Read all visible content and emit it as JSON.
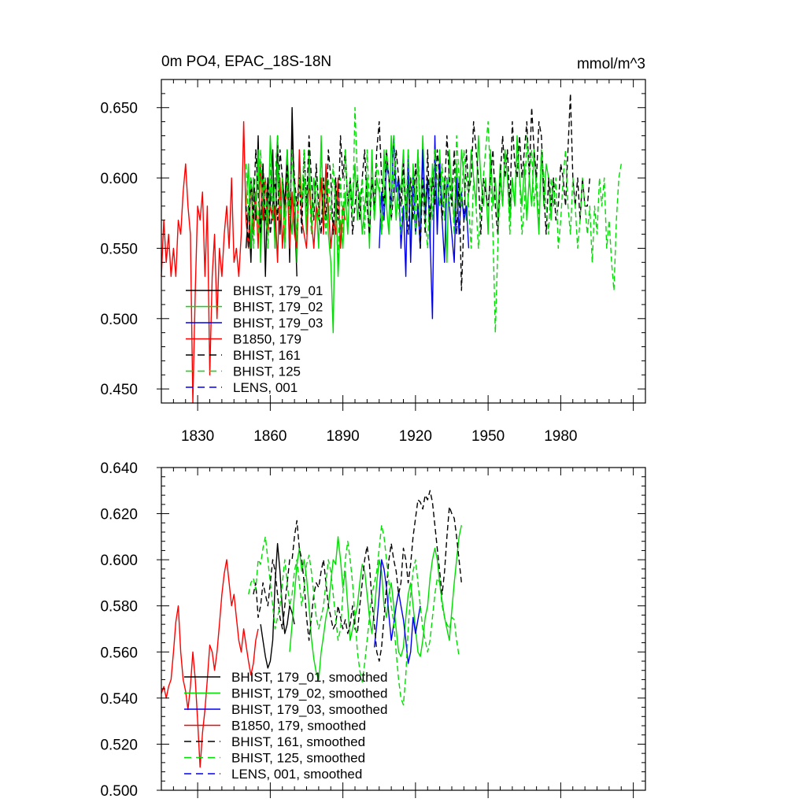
{
  "chart_data": [
    {
      "type": "line",
      "title": "0m PO4, EPAC_18S-18N",
      "units": "mmol/m^3",
      "xlim": [
        1815,
        2015
      ],
      "ylim": [
        0.44,
        0.67
      ],
      "x_ticks": [
        1830,
        1860,
        1890,
        1920,
        1950,
        1980
      ],
      "x_tick_labels": [
        "1830",
        "1860",
        "1890",
        "1920",
        "1950",
        "1980"
      ],
      "y_ticks": [
        0.45,
        0.5,
        0.55,
        0.6,
        0.65
      ],
      "y_tick_labels": [
        "0.450",
        "0.500",
        "0.550",
        "0.600",
        "0.650"
      ],
      "legend_position": "lower-left",
      "series": [
        {
          "name": "BHIST, 179_01",
          "color": "#000000",
          "dashed": false,
          "x0": 1850,
          "values": [
            0.55,
            0.58,
            0.54,
            0.6,
            0.57,
            0.63,
            0.55,
            0.61,
            0.53,
            0.6,
            0.58,
            0.62,
            0.55,
            0.63,
            0.56,
            0.6,
            0.58,
            0.62,
            0.54,
            0.65,
            0.58,
            0.53
          ]
        },
        {
          "name": "BHIST, 179_02",
          "color": "#00dd00",
          "dashed": false,
          "x0": 1850,
          "values": [
            0.58,
            0.61,
            0.55,
            0.6,
            0.58,
            0.62,
            0.54,
            0.6,
            0.57,
            0.56,
            0.63,
            0.59,
            0.55,
            0.61,
            0.57,
            0.6,
            0.55,
            0.62,
            0.58,
            0.56,
            0.6,
            0.54,
            0.62,
            0.58,
            0.6,
            0.56,
            0.62,
            0.57,
            0.6,
            0.58,
            0.55,
            0.63,
            0.57,
            0.6,
            0.56,
            0.54,
            0.49,
            0.6,
            0.53,
            0.57,
            0.55,
            0.59,
            0.56,
            0.6,
            0.58,
            0.61,
            0.57,
            0.59,
            0.56,
            0.58,
            0.6,
            0.55,
            0.62,
            0.57,
            0.6,
            0.59,
            0.56,
            0.62,
            0.58,
            0.56,
            0.63,
            0.6,
            0.57,
            0.6,
            0.59,
            0.62,
            0.57,
            0.6,
            0.55,
            0.61,
            0.58,
            0.62,
            0.56,
            0.63,
            0.58,
            0.6,
            0.55,
            0.61,
            0.59,
            0.57,
            0.62,
            0.58,
            0.6,
            0.54,
            0.62,
            0.59,
            0.57,
            0.61,
            0.58,
            0.62,
            0.6,
            0.57,
            0.59,
            0.62,
            0.6,
            0.58,
            0.63,
            0.6,
            0.58,
            0.6,
            0.56,
            0.62,
            0.58,
            0.6,
            0.57,
            0.61,
            0.58,
            0.62,
            0.6,
            0.57,
            0.6,
            0.58,
            0.63,
            0.6,
            0.58,
            0.61,
            0.57,
            0.6,
            0.58,
            0.62,
            0.59,
            0.56,
            0.62,
            0.58,
            0.61,
            0.6,
            0.57,
            0.6
          ]
        },
        {
          "name": "BHIST, 179_03",
          "color": "#0000ee",
          "dashed": false,
          "x0": 1905,
          "values": [
            0.55,
            0.59,
            0.57,
            0.61,
            0.6,
            0.58,
            0.63,
            0.59,
            0.6,
            0.55,
            0.58,
            0.53,
            0.62,
            0.54,
            0.6,
            0.56,
            0.58,
            0.55,
            0.62,
            0.57,
            0.6,
            0.56,
            0.5,
            0.63,
            0.56,
            0.61,
            0.57,
            0.54,
            0.6,
            0.58,
            0.56,
            0.54,
            0.6,
            0.56,
            0.59,
            0.57,
            0.58,
            0.55
          ]
        },
        {
          "name": "B1850, 179",
          "color": "#ff0000",
          "dashed": false,
          "x0": 1815,
          "values": [
            0.53,
            0.57,
            0.54,
            0.56,
            0.53,
            0.55,
            0.53,
            0.57,
            0.56,
            0.59,
            0.61,
            0.58,
            0.56,
            0.44,
            0.52,
            0.58,
            0.57,
            0.59,
            0.53,
            0.58,
            0.46,
            0.53,
            0.56,
            0.5,
            0.55,
            0.53,
            0.56,
            0.58,
            0.55,
            0.6,
            0.54,
            0.55,
            0.53,
            0.56,
            0.64,
            0.57,
            0.55,
            0.6,
            0.56,
            0.59,
            0.55,
            0.61,
            0.57,
            0.6,
            0.56,
            0.58,
            0.57,
            0.58,
            0.54,
            0.6,
            0.55,
            0.58,
            0.6,
            0.55,
            0.59,
            0.56,
            0.55,
            0.62,
            0.57,
            0.56,
            0.55,
            0.6,
            0.57,
            0.55,
            0.58,
            0.57,
            0.6,
            0.56,
            0.61,
            0.58,
            0.55,
            0.57,
            0.56,
            0.6,
            0.55,
            0.58,
            0.57
          ]
        },
        {
          "name": "BHIST, 161",
          "color": "#000000",
          "dashed": true,
          "x0": 1850,
          "values": [
            0.58,
            0.55,
            0.6,
            0.57,
            0.62,
            0.59,
            0.56,
            0.61,
            0.57,
            0.6,
            0.56,
            0.58,
            0.6,
            0.57,
            0.62,
            0.6,
            0.58,
            0.61,
            0.57,
            0.63,
            0.6,
            0.58,
            0.6,
            0.56,
            0.62,
            0.58,
            0.63,
            0.6,
            0.57,
            0.61,
            0.58,
            0.56,
            0.6,
            0.57,
            0.62,
            0.6,
            0.56,
            0.6,
            0.57,
            0.63,
            0.6,
            0.62,
            0.58,
            0.6,
            0.56,
            0.58,
            0.6,
            0.57,
            0.6,
            0.62,
            0.58,
            0.56,
            0.6,
            0.58,
            0.62,
            0.64,
            0.6,
            0.58,
            0.62,
            0.6,
            0.57,
            0.59,
            0.62,
            0.6,
            0.58,
            0.61,
            0.58,
            0.56,
            0.6,
            0.57,
            0.61,
            0.58,
            0.55,
            0.6,
            0.56,
            0.62,
            0.57,
            0.6,
            0.58,
            0.62,
            0.6,
            0.57,
            0.59,
            0.63,
            0.6,
            0.58,
            0.62,
            0.56,
            0.6,
            0.52,
            0.57,
            0.62,
            0.59,
            0.6,
            0.64,
            0.62,
            0.6,
            0.56,
            0.6,
            0.59,
            0.58,
            0.6,
            0.62,
            0.58,
            0.56,
            0.6,
            0.63,
            0.6,
            0.62,
            0.58,
            0.64,
            0.61,
            0.6,
            0.63,
            0.6,
            0.62,
            0.64,
            0.6,
            0.65,
            0.62,
            0.6,
            0.64,
            0.63,
            0.59,
            0.56,
            0.6,
            0.58,
            0.6,
            0.57,
            0.58,
            0.61,
            0.6,
            0.58,
            0.62,
            0.66,
            0.6,
            0.58,
            0.6,
            0.57,
            0.6,
            0.58,
            0.58,
            0.6
          ]
        },
        {
          "name": "BHIST, 125",
          "color": "#00dd00",
          "dashed": true,
          "x0": 1850,
          "values": [
            0.61,
            0.57,
            0.6,
            0.55,
            0.59,
            0.56,
            0.62,
            0.58,
            0.6,
            0.55,
            0.61,
            0.57,
            0.6,
            0.63,
            0.57,
            0.6,
            0.55,
            0.6,
            0.57,
            0.62,
            0.58,
            0.56,
            0.6,
            0.58,
            0.62,
            0.57,
            0.6,
            0.56,
            0.58,
            0.6,
            0.57,
            0.62,
            0.58,
            0.56,
            0.6,
            0.57,
            0.61,
            0.58,
            0.54,
            0.6,
            0.56,
            0.62,
            0.58,
            0.6,
            0.57,
            0.65,
            0.6,
            0.58,
            0.6,
            0.56,
            0.62,
            0.58,
            0.6,
            0.57,
            0.61,
            0.6,
            0.56,
            0.58,
            0.62,
            0.6,
            0.57,
            0.63,
            0.6,
            0.58,
            0.56,
            0.6,
            0.57,
            0.62,
            0.58,
            0.6,
            0.56,
            0.62,
            0.58,
            0.6,
            0.57,
            0.55,
            0.6,
            0.57,
            0.62,
            0.6,
            0.58,
            0.61,
            0.57,
            0.6,
            0.58,
            0.6,
            0.56,
            0.63,
            0.6,
            0.58,
            0.62,
            0.6,
            0.58,
            0.55,
            0.6,
            0.58,
            0.55,
            0.58,
            0.6,
            0.62,
            0.64,
            0.6,
            0.56,
            0.49,
            0.55,
            0.6,
            0.58,
            0.62,
            0.6,
            0.56,
            0.6,
            0.58,
            0.62,
            0.6,
            0.56,
            0.58,
            0.63,
            0.6,
            0.62,
            0.58,
            0.6,
            0.57,
            0.62,
            0.6,
            0.58,
            0.56,
            0.6,
            0.58,
            0.6,
            0.55,
            0.57,
            0.6,
            0.62,
            0.58,
            0.56,
            0.6,
            0.58,
            0.55,
            0.57,
            0.6,
            0.58,
            0.56,
            0.58,
            0.54,
            0.58,
            0.56,
            0.6,
            0.58,
            0.6,
            0.55,
            0.57,
            0.54,
            0.52,
            0.57,
            0.6,
            0.61
          ]
        },
        {
          "name": "LENS, 001",
          "color": "#0000ee",
          "dashed": true,
          "x0": null,
          "values": []
        }
      ]
    },
    {
      "type": "line",
      "title": "",
      "xlim": [
        1815,
        2015
      ],
      "ylim": [
        0.5,
        0.64
      ],
      "y_ticks": [
        0.5,
        0.52,
        0.54,
        0.56,
        0.58,
        0.6,
        0.62,
        0.64
      ],
      "y_tick_labels": [
        "0.500",
        "0.520",
        "0.540",
        "0.560",
        "0.580",
        "0.600",
        "0.620",
        "0.640"
      ],
      "legend_position": "lower-left",
      "series": [
        {
          "name": "BHIST, 179_01, smoothed",
          "color": "#000000",
          "dashed": false,
          "x0": 1856,
          "values": [
            0.572,
            0.565,
            0.558,
            0.553,
            0.556,
            0.565,
            0.59,
            0.607,
            0.595,
            0.578,
            0.568,
            0.572,
            0.58,
            0.577,
            0.572
          ]
        },
        {
          "name": "BHIST, 179_02, smoothed",
          "color": "#00dd00",
          "dashed": false,
          "x0": 1868,
          "values": [
            0.56,
            0.572,
            0.585,
            0.598,
            0.605,
            0.595,
            0.6,
            0.592,
            0.58,
            0.566,
            0.557,
            0.551,
            0.548,
            0.56,
            0.567,
            0.575,
            0.58,
            0.59,
            0.6,
            0.598,
            0.61,
            0.6,
            0.588,
            0.595,
            0.58,
            0.565,
            0.57,
            0.575,
            0.58,
            0.59,
            0.598,
            0.595,
            0.585,
            0.575,
            0.568,
            0.578,
            0.59,
            0.6,
            0.595,
            0.58,
            0.575,
            0.585,
            0.59,
            0.58,
            0.57,
            0.56,
            0.558,
            0.562,
            0.575,
            0.585,
            0.59,
            0.58,
            0.57,
            0.56,
            0.558,
            0.565,
            0.575,
            0.58,
            0.592,
            0.6,
            0.605,
            0.6,
            0.59,
            0.582,
            0.575,
            0.57,
            0.565,
            0.578,
            0.59,
            0.6,
            0.61,
            0.615
          ]
        },
        {
          "name": "BHIST, 179_03, smoothed",
          "color": "#0000ee",
          "dashed": false,
          "x0": 1903,
          "values": [
            0.562,
            0.572,
            0.585,
            0.6,
            0.596,
            0.588,
            0.576,
            0.565,
            0.572,
            0.58,
            0.586,
            0.58,
            0.574,
            0.565,
            0.555,
            0.56,
            0.575,
            0.568,
            0.574,
            0.58
          ]
        },
        {
          "name": "B1850, 179, smoothed",
          "color": "#ff0000",
          "dashed": false,
          "x0": 1815,
          "values": [
            0.542,
            0.545,
            0.54,
            0.545,
            0.548,
            0.56,
            0.573,
            0.58,
            0.56,
            0.548,
            0.543,
            0.535,
            0.545,
            0.56,
            0.548,
            0.53,
            0.51,
            0.525,
            0.535,
            0.548,
            0.563,
            0.56,
            0.552,
            0.56,
            0.572,
            0.585,
            0.594,
            0.6,
            0.59,
            0.58,
            0.585,
            0.575,
            0.565,
            0.56,
            0.57,
            0.563,
            0.556,
            0.55,
            0.555,
            0.565,
            0.57
          ]
        },
        {
          "name": "BHIST, 161, smoothed",
          "color": "#000000",
          "dashed": true,
          "x0": 1853,
          "values": [
            0.585,
            0.59,
            0.575,
            0.58,
            0.59,
            0.585,
            0.58,
            0.59,
            0.6,
            0.595,
            0.585,
            0.575,
            0.57,
            0.58,
            0.59,
            0.6,
            0.6,
            0.61,
            0.617,
            0.605,
            0.6,
            0.59,
            0.575,
            0.565,
            0.575,
            0.585,
            0.59,
            0.588,
            0.595,
            0.6,
            0.59,
            0.58,
            0.575,
            0.57,
            0.572,
            0.58,
            0.575,
            0.57,
            0.574,
            0.568,
            0.572,
            0.58,
            0.57,
            0.568,
            0.58,
            0.59,
            0.6,
            0.606,
            0.598,
            0.582,
            0.572,
            0.56,
            0.556,
            0.562,
            0.575,
            0.588,
            0.6,
            0.607,
            0.6,
            0.595,
            0.585,
            0.59,
            0.605,
            0.6,
            0.59,
            0.598,
            0.61,
            0.618,
            0.626,
            0.625,
            0.622,
            0.628,
            0.626,
            0.63,
            0.625,
            0.615,
            0.605,
            0.595,
            0.585,
            0.595,
            0.61,
            0.623,
            0.62,
            0.618,
            0.61,
            0.6,
            0.59
          ]
        },
        {
          "name": "BHIST, 125, smoothed",
          "color": "#00dd00",
          "dashed": true,
          "x0": 1851,
          "values": [
            0.585,
            0.59,
            0.592,
            0.587,
            0.6,
            0.598,
            0.605,
            0.61,
            0.6,
            0.59,
            0.58,
            0.57,
            0.575,
            0.58,
            0.59,
            0.6,
            0.59,
            0.58,
            0.585,
            0.595,
            0.6,
            0.59,
            0.58,
            0.588,
            0.598,
            0.602,
            0.595,
            0.585,
            0.575,
            0.57,
            0.575,
            0.58,
            0.59,
            0.6,
            0.595,
            0.585,
            0.575,
            0.565,
            0.57,
            0.585,
            0.6,
            0.608,
            0.6,
            0.59,
            0.575,
            0.56,
            0.552,
            0.547,
            0.555,
            0.565,
            0.575,
            0.585,
            0.59,
            0.595,
            0.605,
            0.615,
            0.61,
            0.6,
            0.59,
            0.58,
            0.573,
            0.56,
            0.548,
            0.54,
            0.537,
            0.55,
            0.57,
            0.585,
            0.595,
            0.6,
            0.59,
            0.58,
            0.57,
            0.565,
            0.56,
            0.565,
            0.575,
            0.585,
            0.592,
            0.59,
            0.58,
            0.575,
            0.572,
            0.57,
            0.575,
            0.574,
            0.565,
            0.558
          ]
        },
        {
          "name": "LENS, 001, smoothed",
          "color": "#0000ee",
          "dashed": true,
          "x0": null,
          "values": []
        }
      ]
    }
  ]
}
